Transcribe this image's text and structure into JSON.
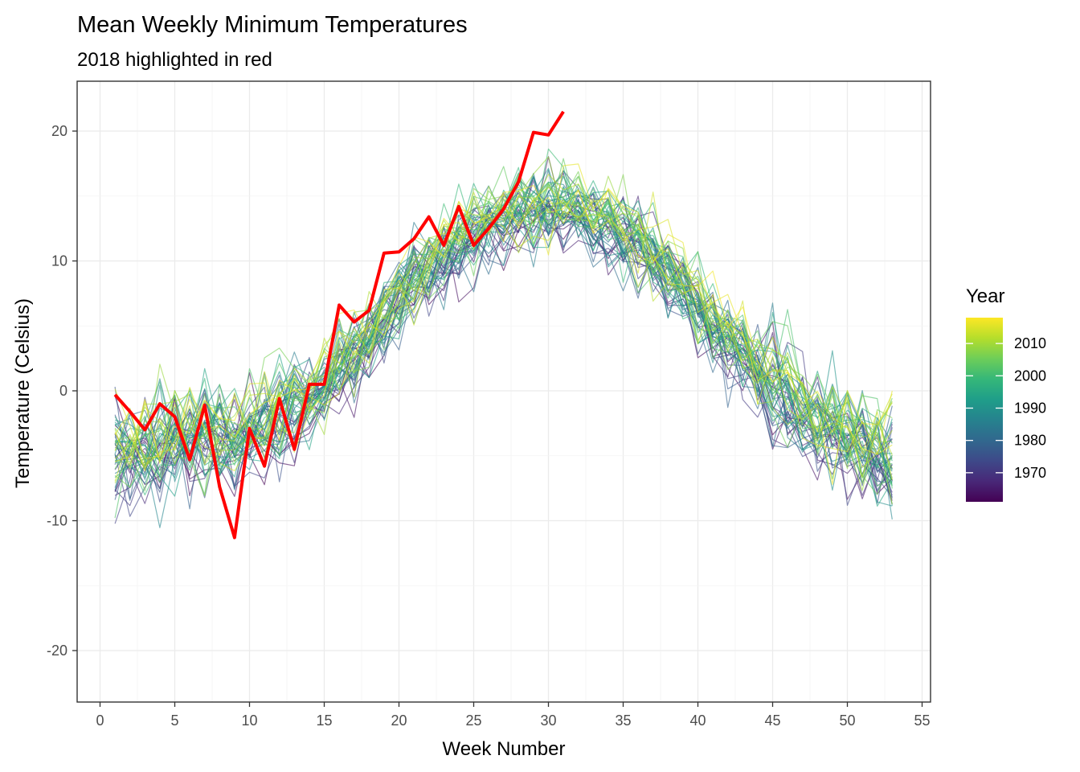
{
  "chart_data": {
    "type": "line",
    "title": "Mean Weekly Minimum Temperatures",
    "subtitle": "2018 highlighted in red",
    "xlabel": "Week Number",
    "ylabel": "Temperature (Celsius)",
    "xlim": [
      -1,
      56
    ],
    "ylim": [
      -24,
      23.5
    ],
    "x_ticks": [
      0,
      5,
      10,
      15,
      20,
      25,
      30,
      35,
      40,
      45,
      50,
      55
    ],
    "y_ticks": [
      -20,
      -10,
      0,
      10,
      20
    ],
    "grid": true,
    "legend": {
      "title": "Year",
      "position": "right",
      "type": "colorbar",
      "range": [
        1961,
        2018
      ],
      "breaks": [
        1970,
        1980,
        1990,
        2000,
        2010
      ],
      "palette": [
        "#440154",
        "#482878",
        "#3e4989",
        "#31688e",
        "#26828e",
        "#1f9e89",
        "#35b779",
        "#6ece58",
        "#b5de2b",
        "#fde725"
      ]
    },
    "year_range": [
      1961,
      2017
    ],
    "highlight": {
      "name": "2018",
      "color": "#ff0000",
      "weeks": [
        1,
        2,
        3,
        4,
        5,
        6,
        7,
        8,
        9,
        10,
        11,
        12,
        13,
        14,
        15,
        16,
        17,
        18,
        19,
        20,
        21,
        22,
        23,
        24,
        25,
        26,
        27,
        28,
        29,
        30,
        31
      ],
      "values": [
        -0.3,
        -1.6,
        -3.0,
        -1.0,
        -2.0,
        -5.3,
        -1.1,
        -7.4,
        -11.3,
        -2.9,
        -5.8,
        -0.6,
        -4.5,
        0.5,
        0.5,
        6.6,
        5.3,
        6.2,
        10.6,
        10.7,
        11.7,
        13.4,
        11.2,
        14.2,
        11.2,
        12.5,
        14.0,
        16.1,
        19.9,
        19.7,
        21.5
      ]
    },
    "mean_profile": {
      "weeks": [
        1,
        2,
        3,
        4,
        5,
        6,
        7,
        8,
        9,
        10,
        11,
        12,
        13,
        14,
        15,
        16,
        17,
        18,
        19,
        20,
        21,
        22,
        23,
        24,
        25,
        26,
        27,
        28,
        29,
        30,
        31,
        32,
        33,
        34,
        35,
        36,
        37,
        38,
        39,
        40,
        41,
        42,
        43,
        44,
        45,
        46,
        47,
        48,
        49,
        50,
        51,
        52,
        53
      ],
      "values": [
        -4.5,
        -4.8,
        -4.6,
        -4.3,
        -4.0,
        -3.8,
        -3.6,
        -3.5,
        -3.3,
        -2.9,
        -2.4,
        -1.8,
        -1.1,
        -0.4,
        0.5,
        1.6,
        2.9,
        4.3,
        5.8,
        7.2,
        8.5,
        9.6,
        10.6,
        11.5,
        12.2,
        12.9,
        13.4,
        13.8,
        14.1,
        14.3,
        14.4,
        14.2,
        13.8,
        13.2,
        12.4,
        11.5,
        10.5,
        9.3,
        8.1,
        6.8,
        5.5,
        4.2,
        2.9,
        1.7,
        0.5,
        -0.6,
        -1.6,
        -2.4,
        -3.1,
        -3.7,
        -4.2,
        -4.7,
        -5.2
      ]
    }
  }
}
